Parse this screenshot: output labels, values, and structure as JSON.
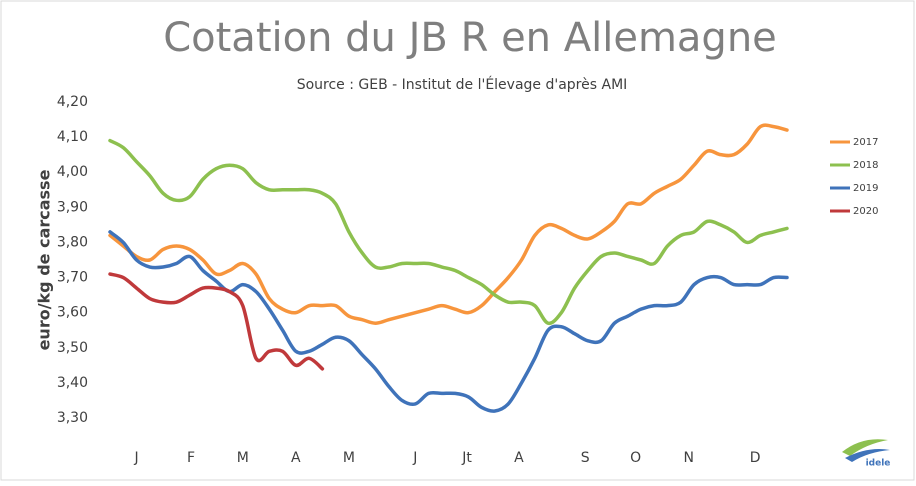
{
  "chart_data": {
    "type": "line",
    "title": "Cotation du JB R en Allemagne",
    "subtitle": "Source : GEB - Institut de l'Élevage d'après AMI",
    "y_label": "euro/kg de carcasse",
    "x": [
      1,
      2,
      3,
      4,
      5,
      6,
      7,
      8,
      9,
      10,
      11,
      12,
      13,
      14,
      15,
      16,
      17,
      18,
      19,
      20,
      21,
      22,
      23,
      24,
      25,
      26,
      27,
      28,
      29,
      30,
      31,
      32,
      33,
      34,
      35,
      36,
      37,
      38,
      39,
      40,
      41,
      42,
      43,
      44,
      45,
      46,
      47,
      48,
      49,
      50,
      51,
      52
    ],
    "xlim": [
      1,
      52
    ],
    "xticks": [
      {
        "value": 3,
        "label": "J"
      },
      {
        "value": 7.1,
        "label": "F"
      },
      {
        "value": 11,
        "label": "M"
      },
      {
        "value": 15,
        "label": "A"
      },
      {
        "value": 19,
        "label": "M"
      },
      {
        "value": 24,
        "label": "J"
      },
      {
        "value": 27.9,
        "label": "Jt"
      },
      {
        "value": 31.8,
        "label": "A"
      },
      {
        "value": 36.8,
        "label": "S"
      },
      {
        "value": 40.6,
        "label": "O"
      },
      {
        "value": 44.6,
        "label": "N"
      },
      {
        "value": 49.6,
        "label": "D"
      }
    ],
    "ylim": [
      3.3,
      4.2
    ],
    "yticks": [
      {
        "value": 3.3,
        "label": "3,30"
      },
      {
        "value": 3.4,
        "label": "3,40"
      },
      {
        "value": 3.5,
        "label": "3,50"
      },
      {
        "value": 3.6,
        "label": "3,60"
      },
      {
        "value": 3.7,
        "label": "3,70"
      },
      {
        "value": 3.8,
        "label": "3,80"
      },
      {
        "value": 3.9,
        "label": "3,90"
      },
      {
        "value": 4.0,
        "label": "4,00"
      },
      {
        "value": 4.1,
        "label": "4,10"
      },
      {
        "value": 4.2,
        "label": "4,20"
      }
    ],
    "grid": false,
    "legend": "right",
    "series": [
      {
        "name": "2017",
        "color": "#f7953d",
        "values": [
          3.82,
          3.79,
          3.76,
          3.75,
          3.78,
          3.79,
          3.78,
          3.75,
          3.71,
          3.72,
          3.74,
          3.71,
          3.64,
          3.61,
          3.6,
          3.62,
          3.62,
          3.62,
          3.59,
          3.58,
          3.57,
          3.58,
          3.59,
          3.6,
          3.61,
          3.62,
          3.61,
          3.6,
          3.62,
          3.66,
          3.7,
          3.75,
          3.82,
          3.85,
          3.84,
          3.82,
          3.81,
          3.83,
          3.86,
          3.91,
          3.91,
          3.94,
          3.96,
          3.98,
          4.02,
          4.06,
          4.05,
          4.05,
          4.08,
          4.13,
          4.13,
          4.12
        ]
      },
      {
        "name": "2018",
        "color": "#8dc04f",
        "values": [
          4.09,
          4.07,
          4.03,
          3.99,
          3.94,
          3.92,
          3.93,
          3.98,
          4.01,
          4.02,
          4.01,
          3.97,
          3.95,
          3.95,
          3.95,
          3.95,
          3.94,
          3.91,
          3.83,
          3.77,
          3.73,
          3.73,
          3.74,
          3.74,
          3.74,
          3.73,
          3.72,
          3.7,
          3.68,
          3.65,
          3.63,
          3.63,
          3.62,
          3.57,
          3.6,
          3.67,
          3.72,
          3.76,
          3.77,
          3.76,
          3.75,
          3.74,
          3.79,
          3.82,
          3.83,
          3.86,
          3.85,
          3.83,
          3.8,
          3.82,
          3.83,
          3.84
        ]
      },
      {
        "name": "2019",
        "color": "#3f73ba",
        "values": [
          3.83,
          3.8,
          3.75,
          3.73,
          3.73,
          3.74,
          3.76,
          3.72,
          3.69,
          3.66,
          3.68,
          3.66,
          3.61,
          3.55,
          3.49,
          3.49,
          3.51,
          3.53,
          3.52,
          3.48,
          3.44,
          3.39,
          3.35,
          3.34,
          3.37,
          3.37,
          3.37,
          3.36,
          3.33,
          3.32,
          3.34,
          3.4,
          3.47,
          3.55,
          3.56,
          3.54,
          3.52,
          3.52,
          3.57,
          3.59,
          3.61,
          3.62,
          3.62,
          3.63,
          3.68,
          3.7,
          3.7,
          3.68,
          3.68,
          3.68,
          3.7,
          3.7
        ]
      },
      {
        "name": "2020",
        "color": "#c0393b",
        "values": [
          3.71,
          3.7,
          3.67,
          3.64,
          3.63,
          3.63,
          3.65,
          3.67,
          3.67,
          3.66,
          3.62,
          3.47,
          3.49,
          3.49,
          3.45,
          3.47,
          3.44,
          null,
          null,
          null,
          null,
          null,
          null,
          null,
          null,
          null,
          null,
          null,
          null,
          null,
          null,
          null,
          null,
          null,
          null,
          null,
          null,
          null,
          null,
          null,
          null,
          null,
          null,
          null,
          null,
          null,
          null,
          null,
          null,
          null,
          null,
          null
        ]
      }
    ]
  },
  "logo": "idele"
}
